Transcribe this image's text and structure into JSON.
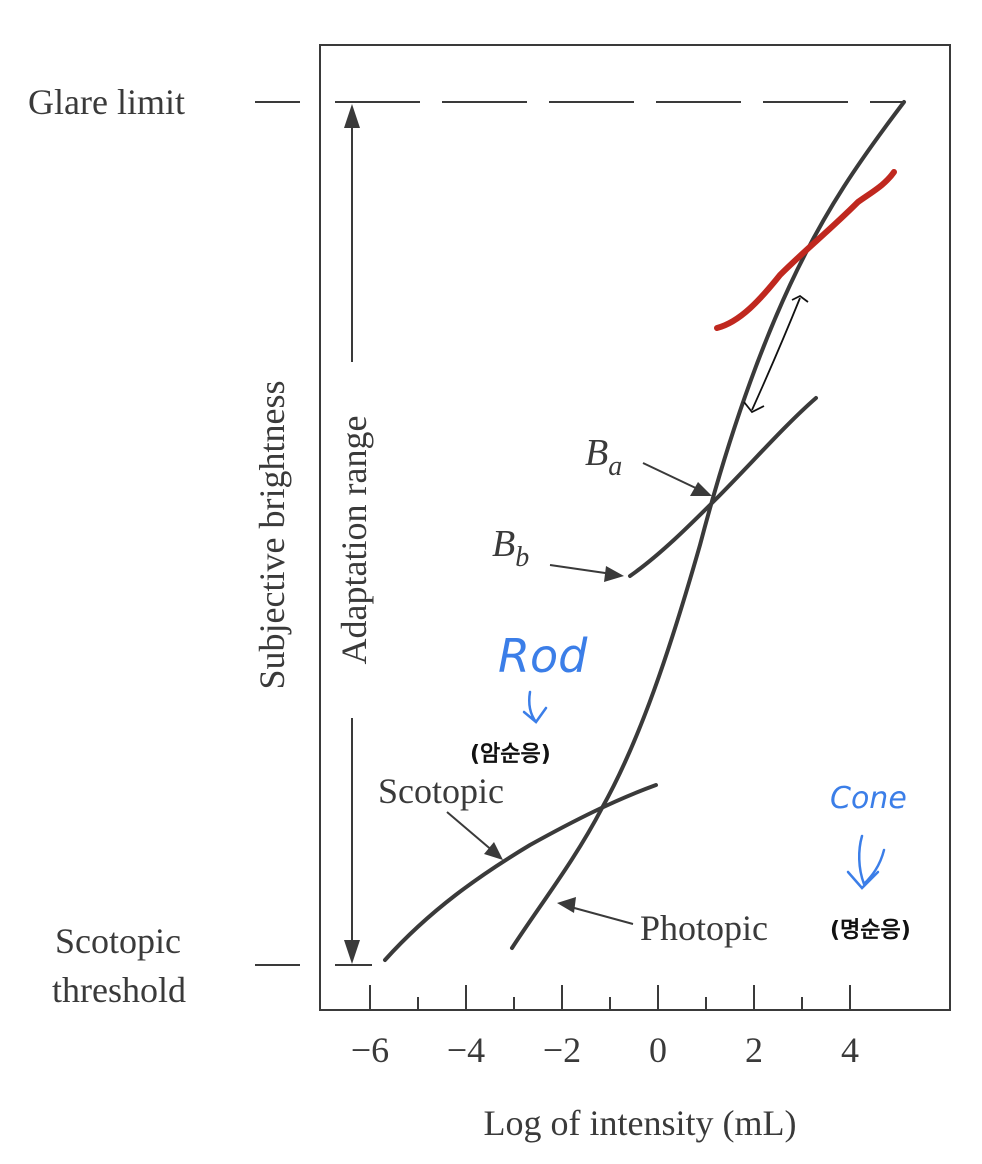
{
  "labels": {
    "glare_limit": "Glare limit",
    "scotopic_threshold_line1": "Scotopic",
    "scotopic_threshold_line2": "threshold",
    "y_axis": "Subjective brightness",
    "adaptation_range": "Adaptation range",
    "x_axis": "Log of intensity (mL)",
    "b_a": "B",
    "b_a_sub": "a",
    "b_b": "B",
    "b_b_sub": "b",
    "scotopic": "Scotopic",
    "photopic": "Photopic"
  },
  "annotations": {
    "rod": "Rod",
    "rod_korean": "(암순응)",
    "cone": "Cone",
    "cone_korean": "(명순응)"
  },
  "colors": {
    "curve": "#3a3a3a",
    "highlight": "#c0281f",
    "annotation": "#3b7ee8"
  },
  "chart_data": {
    "type": "line",
    "xlabel": "Log of intensity (mL)",
    "ylabel": "Subjective brightness",
    "xlim": [
      -7,
      6
    ],
    "x_ticks": [
      "−6",
      "−4",
      "−2",
      "0",
      "2",
      "4"
    ],
    "series": [
      {
        "name": "Photopic",
        "x": [
          -3,
          -2,
          -1,
          0,
          1,
          2,
          3,
          4,
          5
        ]
      },
      {
        "name": "Scotopic",
        "x": [
          -5.7,
          -4,
          -2,
          0
        ]
      }
    ]
  }
}
